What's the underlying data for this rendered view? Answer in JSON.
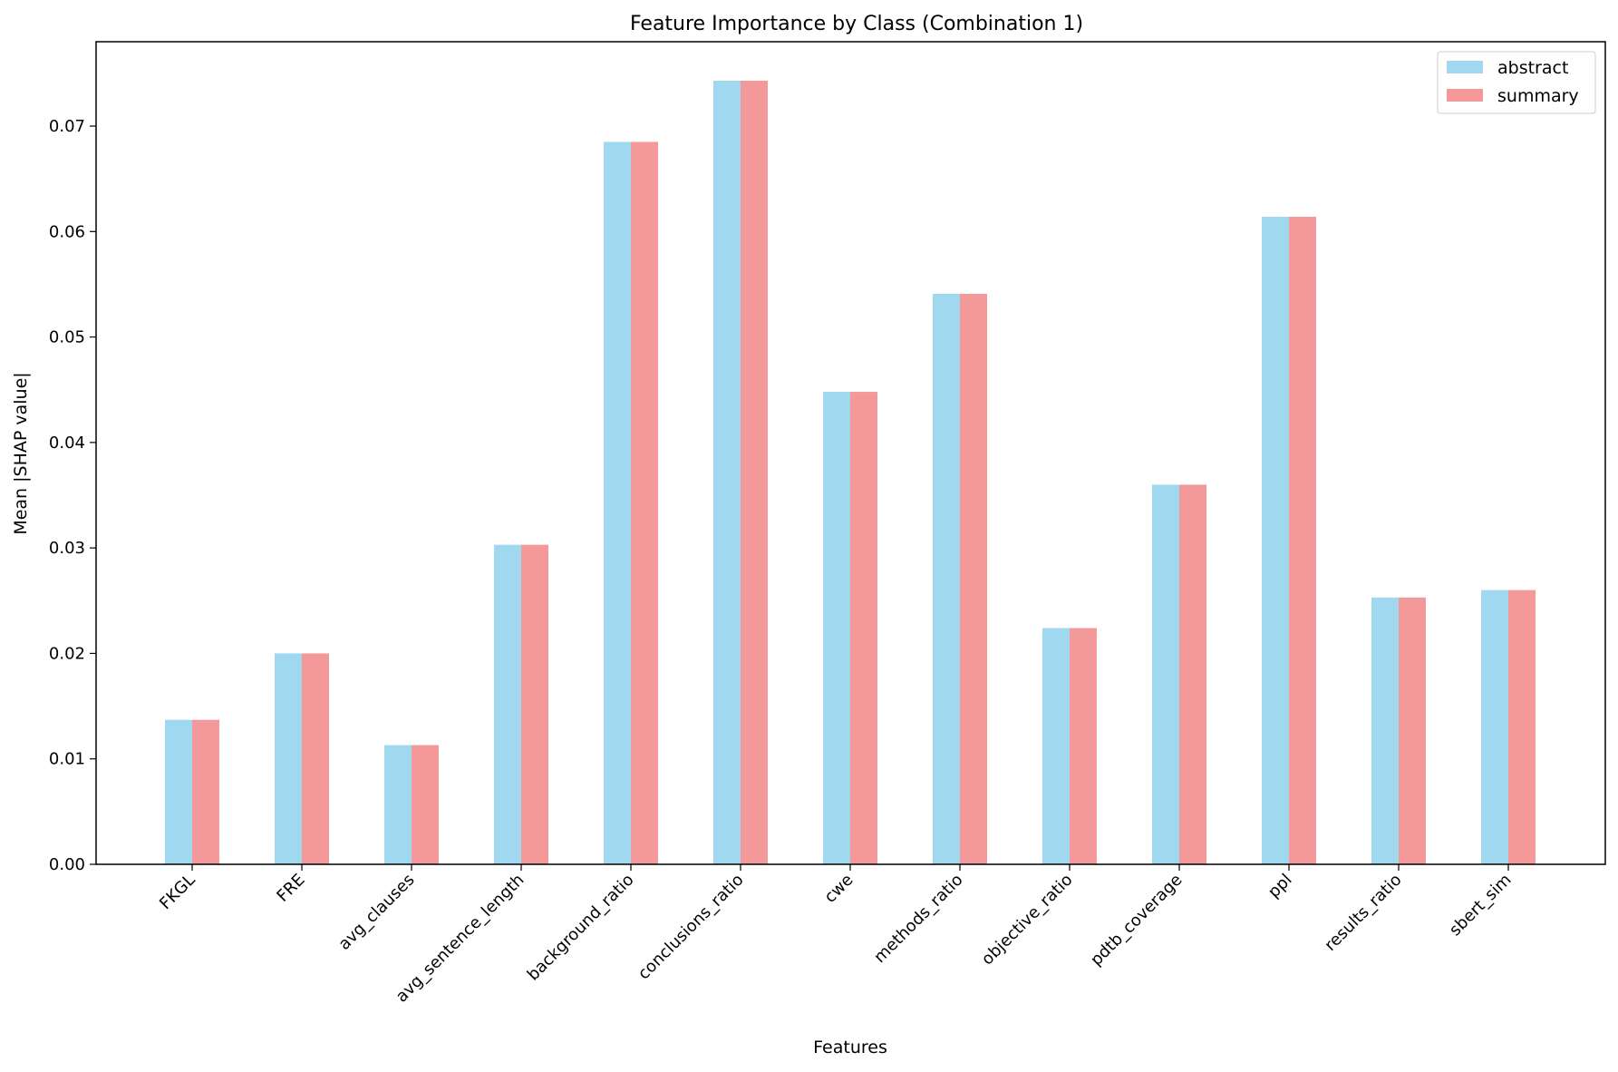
{
  "chart_data": {
    "type": "bar",
    "title": "Feature Importance by Class (Combination 1)",
    "xlabel": "Features",
    "ylabel": "Mean |SHAP value|",
    "ylim": [
      0,
      0.078
    ],
    "yticks": [
      "0.00",
      "0.01",
      "0.02",
      "0.03",
      "0.04",
      "0.05",
      "0.06",
      "0.07"
    ],
    "categories": [
      "FKGL",
      "FRE",
      "avg_clauses",
      "avg_sentence_length",
      "background_ratio",
      "conclusions_ratio",
      "cwe",
      "methods_ratio",
      "objective_ratio",
      "pdtb_coverage",
      "ppl",
      "results_ratio",
      "sbert_sim"
    ],
    "series": [
      {
        "name": "abstract",
        "color": "#87ceeb",
        "opacity": 0.8,
        "values": [
          0.0137,
          0.02,
          0.0113,
          0.0303,
          0.0685,
          0.0743,
          0.0448,
          0.0541,
          0.0224,
          0.036,
          0.0614,
          0.0253,
          0.026
        ]
      },
      {
        "name": "summary",
        "color": "#f08080",
        "opacity": 0.8,
        "values": [
          0.0137,
          0.02,
          0.0113,
          0.0303,
          0.0685,
          0.0743,
          0.0448,
          0.0541,
          0.0224,
          0.036,
          0.0614,
          0.0253,
          0.026
        ]
      }
    ],
    "grid": false,
    "legend_position": "top-right"
  }
}
